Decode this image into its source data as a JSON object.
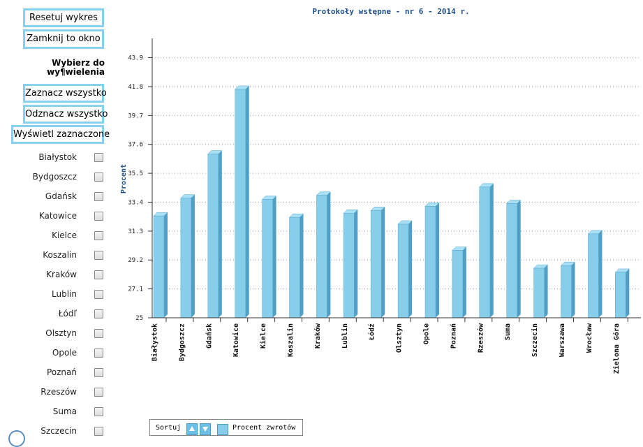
{
  "sidebar": {
    "reset_label": "Resetuj wykres",
    "close_label": "Zamknij to okno",
    "select_heading_line1": "Wybierz do",
    "select_heading_line2": "wy¶wielenia",
    "select_all_label": "Zaznacz wszystko",
    "deselect_all_label": "Odznacz wszystko",
    "show_selected_label": "Wyświetl zaznaczone",
    "cities": [
      "Białystok",
      "Bydgoszcz",
      "Gdańsk",
      "Katowice",
      "Kielce",
      "Koszalin",
      "Kraków",
      "Lublin",
      "Łódľ",
      "Olsztyn",
      "Opole",
      "Poznań",
      "Rzeszów",
      "Suma",
      "Szczecin"
    ]
  },
  "legend": {
    "sort_label": "Sortuj",
    "series_label": "Procent zwrotów"
  },
  "colors": {
    "bar_front": "#87ceeb",
    "bar_side": "#4f9fc6",
    "bar_top": "#a9e0f5",
    "button_border": "#88d0ee",
    "title": "#1f4f88"
  },
  "chart_data": {
    "type": "bar",
    "title": "Protokoły wstępne - nr 6 - 2014 r.",
    "xlabel": "",
    "ylabel": "Procent",
    "ylim": [
      25,
      45.3
    ],
    "yticks": [
      "25",
      "27.1",
      "29.2",
      "31.3",
      "33.4",
      "35.5",
      "37.6",
      "39.7",
      "41.8",
      "43.9"
    ],
    "grid": "horizontal dotted",
    "categories": [
      "Białystok",
      "Bydgoszcz",
      "Gdańsk",
      "Katowice",
      "Kielce",
      "Koszalin",
      "Kraków",
      "Lublin",
      "Łódź",
      "Olsztyn",
      "Opole",
      "Poznań",
      "Rzeszów",
      "Suma",
      "Szczecin",
      "Warszawa",
      "Wrocław",
      "Zielona Góra"
    ],
    "series": [
      {
        "name": "Procent zwrotów",
        "values": [
          32.4,
          33.7,
          36.9,
          41.6,
          33.6,
          32.3,
          33.9,
          32.6,
          32.8,
          31.8,
          33.1,
          29.9,
          34.5,
          33.3,
          28.6,
          28.8,
          31.1,
          28.3
        ]
      }
    ]
  }
}
